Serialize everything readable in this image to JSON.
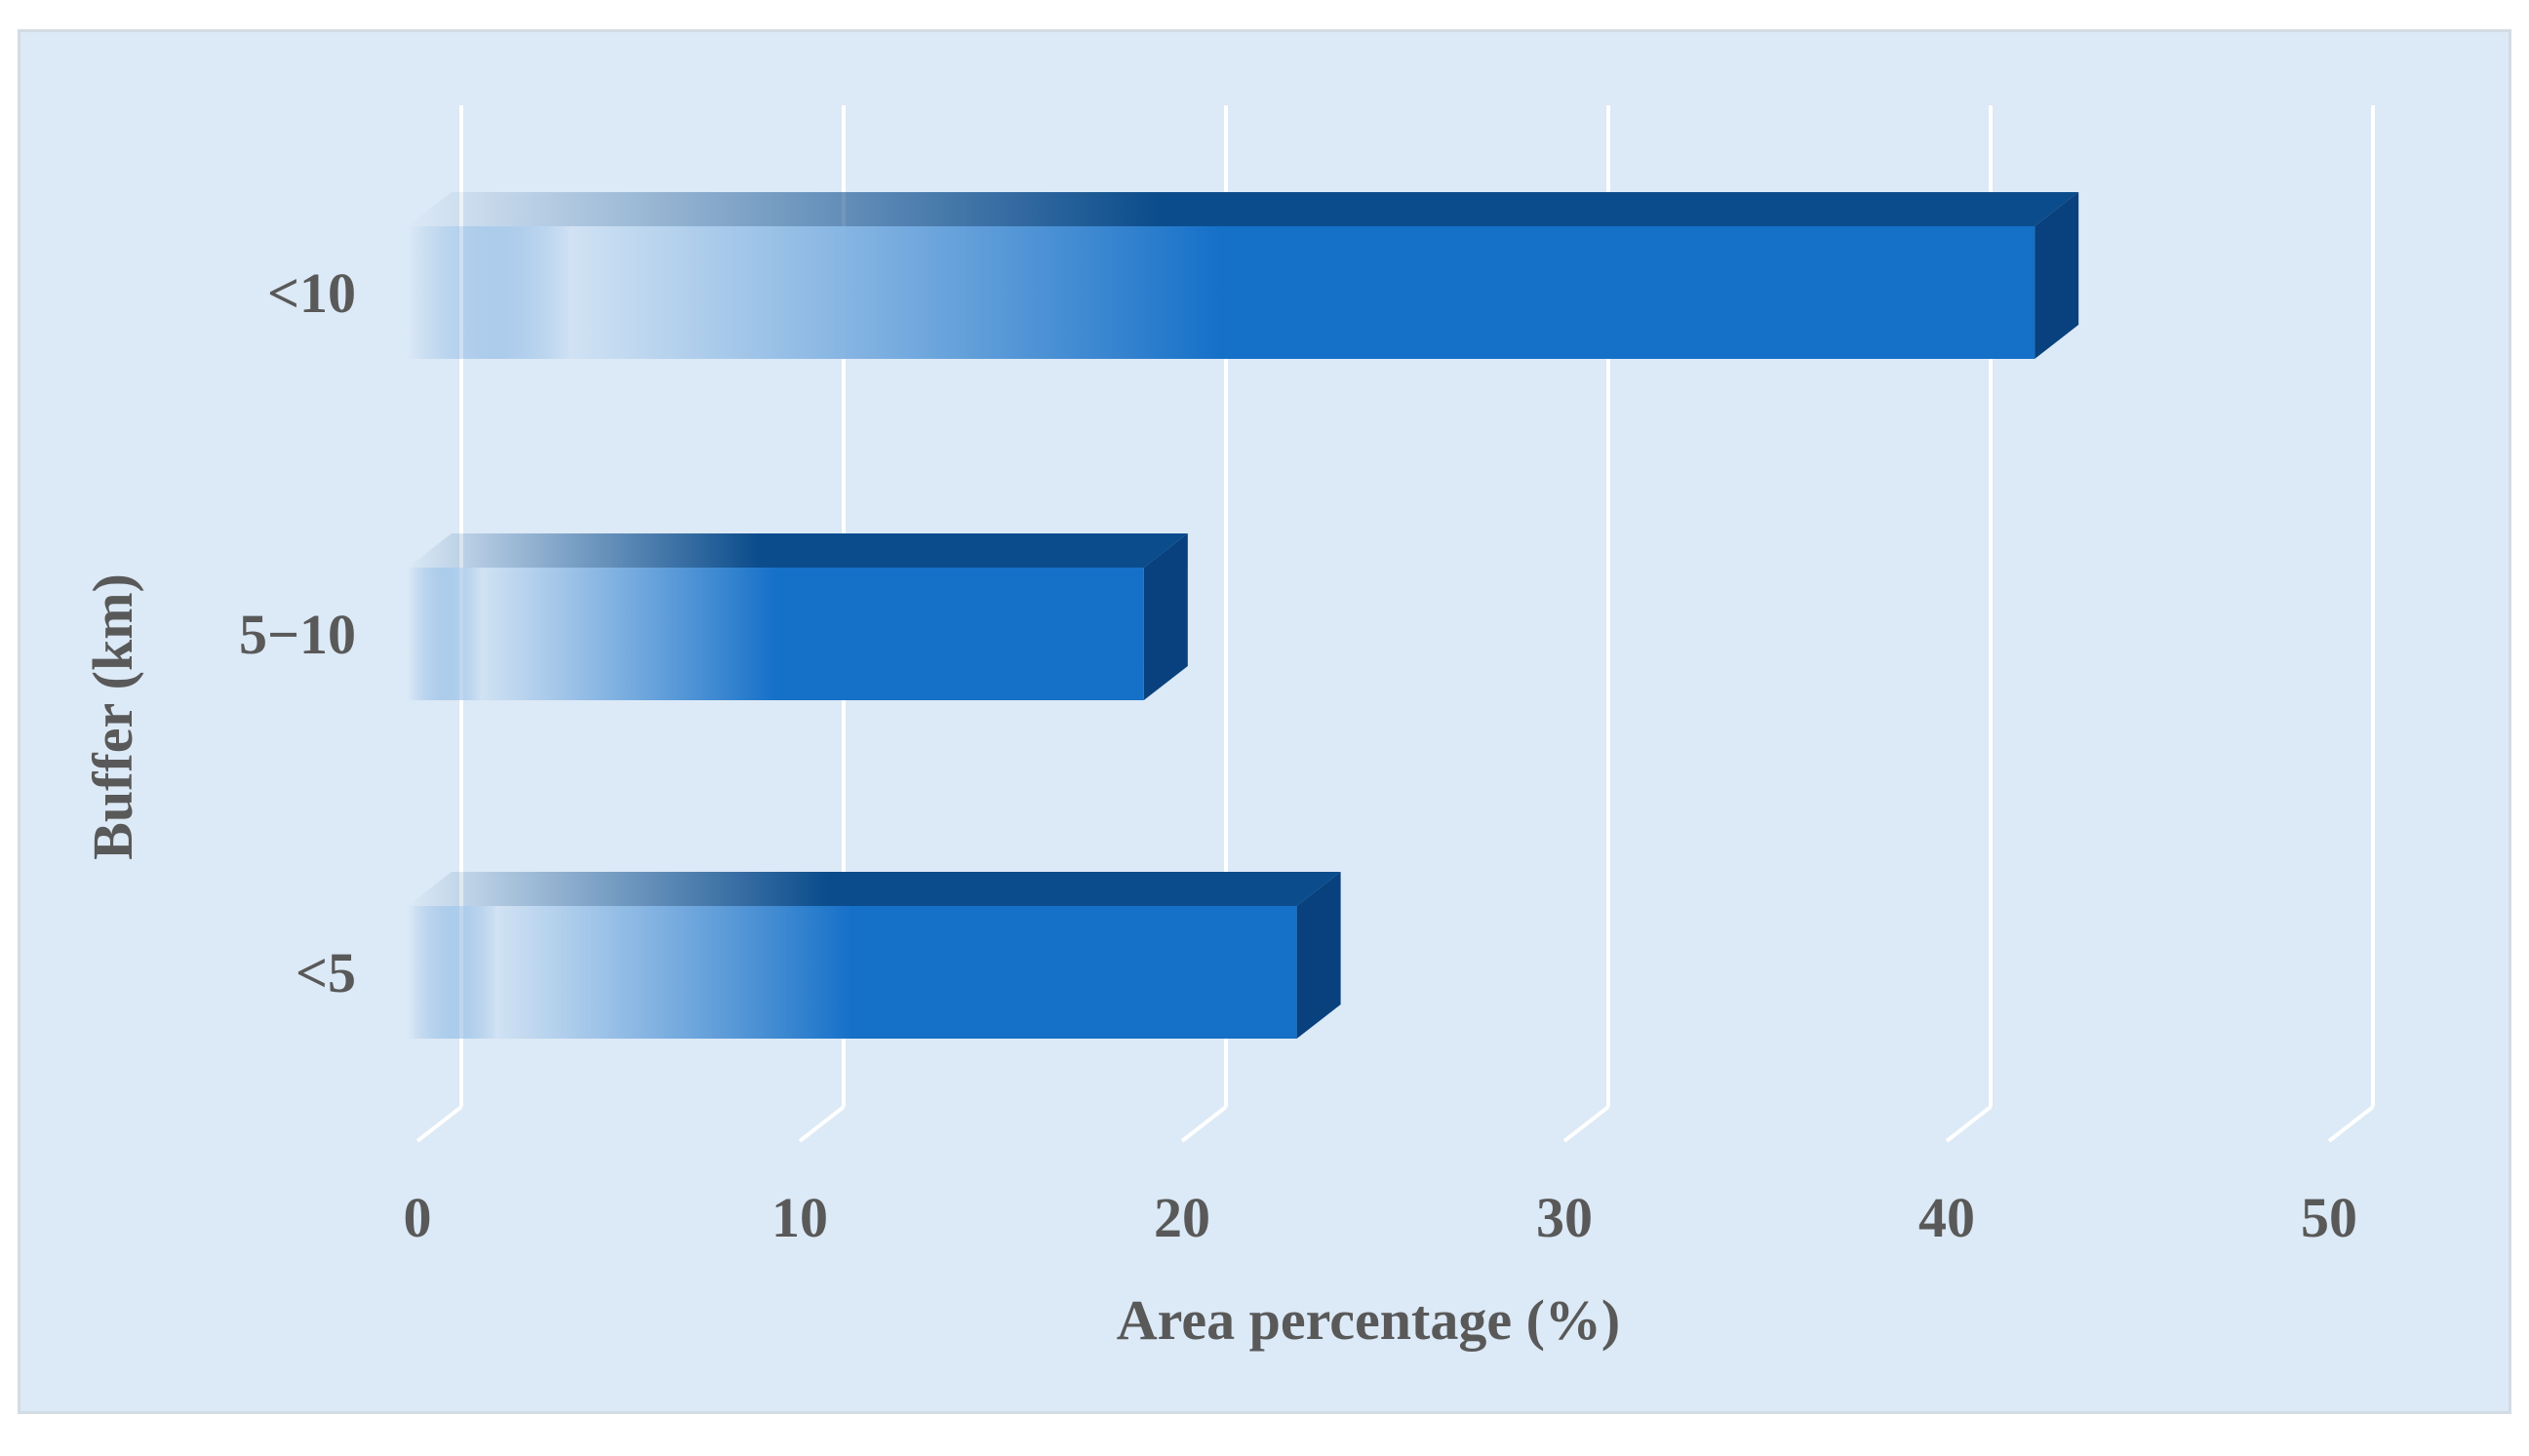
{
  "chart_data": {
    "type": "bar",
    "orientation": "horizontal",
    "style": "3d-gradient",
    "categories": [
      "<10",
      "5−10",
      "<5"
    ],
    "values": [
      42.3,
      19.0,
      23.0
    ],
    "xlabel": "Area percentage (%)",
    "ylabel": "Buffer (km)",
    "xlim": [
      0,
      50
    ],
    "xticks": [
      "0",
      "10",
      "20",
      "30",
      "40",
      "50"
    ],
    "grid": "vertical",
    "legend": "none",
    "colors": {
      "bar_front": "#1570c8",
      "bar_top": "#0b4c8c",
      "bar_side": "#08417d",
      "background": "#dce9f6",
      "grid": "#ffffff",
      "text": "#595959"
    }
  }
}
